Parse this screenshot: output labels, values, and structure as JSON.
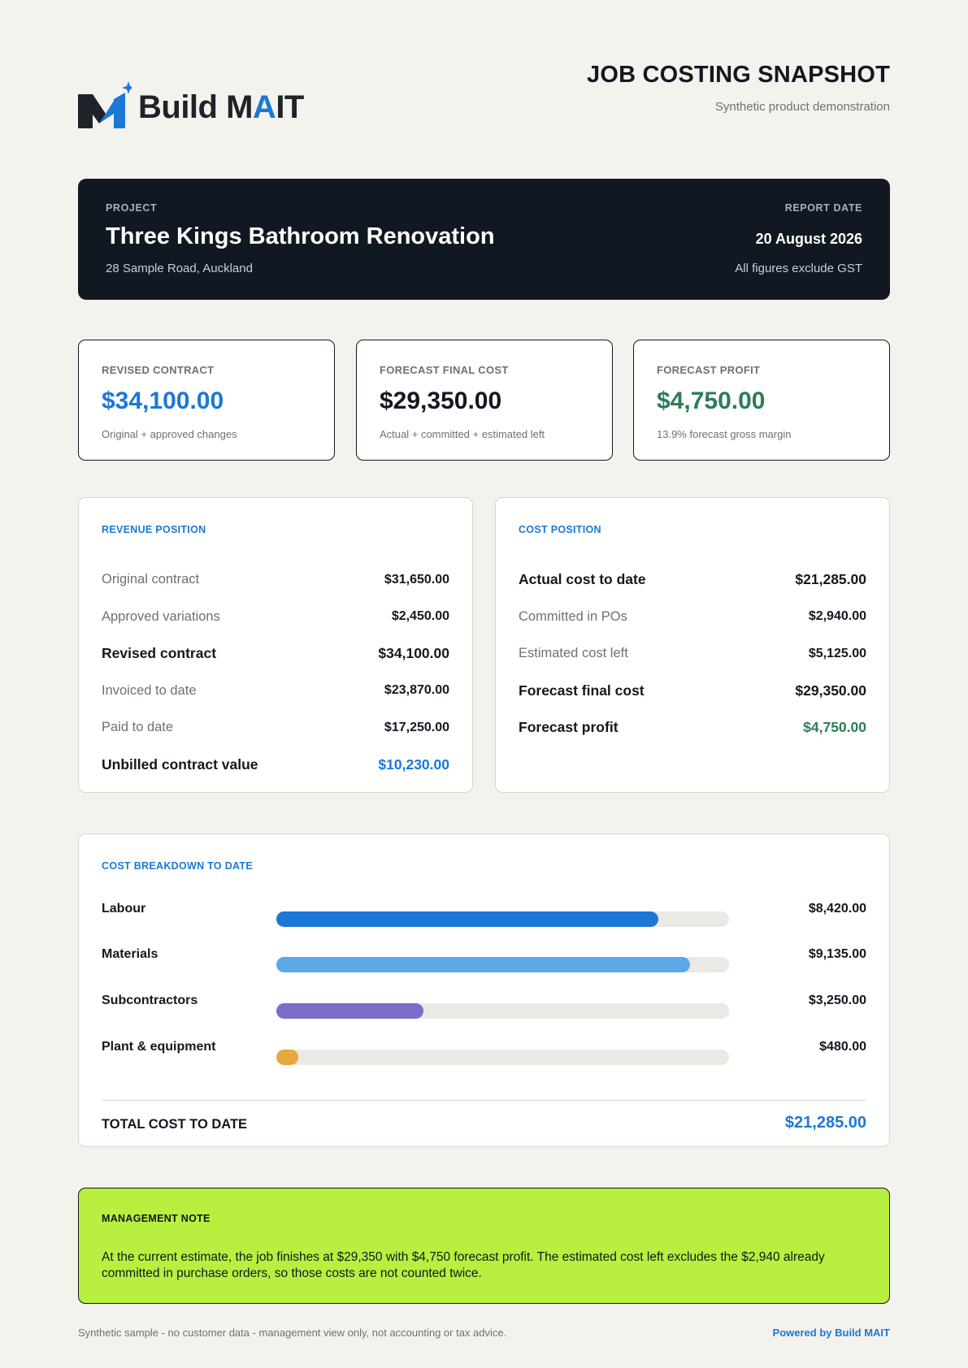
{
  "brand": {
    "name_part1": "Build M",
    "name_accent": "A",
    "name_part2": "IT",
    "colors": {
      "primary": "#1b78d6",
      "dark": "#121821",
      "positive": "#2d7d57",
      "note_bg": "#b9ef3e"
    }
  },
  "header": {
    "title": "JOB COSTING SNAPSHOT",
    "subtitle": "Synthetic product demonstration"
  },
  "project": {
    "label": "PROJECT",
    "name": "Three Kings Bathroom Renovation",
    "address": "28 Sample Road, Auckland",
    "report_date_label": "REPORT DATE",
    "report_date": "20 August 2026",
    "gst_note": "All figures exclude GST"
  },
  "kpis": [
    {
      "label": "REVISED CONTRACT",
      "value": "$34,100.00",
      "sub": "Original + approved changes",
      "color": "#1b78d6"
    },
    {
      "label": "FORECAST FINAL COST",
      "value": "$29,350.00",
      "sub": "Actual + committed + estimated left",
      "color": "#121821"
    },
    {
      "label": "FORECAST PROFIT",
      "value": "$4,750.00",
      "sub": "13.9% forecast gross margin",
      "color": "#2d7d57"
    }
  ],
  "revenue": {
    "title": "REVENUE POSITION",
    "rows": [
      {
        "label": "Original contract",
        "value": "$31,650.00"
      },
      {
        "label": "Approved variations",
        "value": "$2,450.00"
      },
      {
        "label": "Revised contract",
        "value": "$34,100.00"
      },
      {
        "label": "Invoiced to date",
        "value": "$23,870.00"
      },
      {
        "label": "Paid to date",
        "value": "$17,250.00"
      },
      {
        "label": "Unbilled contract value",
        "value": "$10,230.00"
      }
    ]
  },
  "cost": {
    "title": "COST POSITION",
    "rows": [
      {
        "label": "Actual cost to date",
        "value": "$21,285.00"
      },
      {
        "label": "Committed in POs",
        "value": "$2,940.00"
      },
      {
        "label": "Estimated cost left",
        "value": "$5,125.00"
      },
      {
        "label": "Forecast final cost",
        "value": "$29,350.00"
      },
      {
        "label": "Forecast profit",
        "value": "$4,750.00"
      }
    ]
  },
  "breakdown": {
    "title": "COST BREAKDOWN TO DATE",
    "rows": [
      {
        "label": "Labour",
        "value": "$8,420.00",
        "fraction": 0.843,
        "color": "#1b78d6"
      },
      {
        "label": "Materials",
        "value": "$9,135.00",
        "fraction": 0.914,
        "color": "#5ca9e8"
      },
      {
        "label": "Subcontractors",
        "value": "$3,250.00",
        "fraction": 0.325,
        "color": "#7c6bc8"
      },
      {
        "label": "Plant & equipment",
        "value": "$480.00",
        "fraction": 0.048,
        "color": "#e6a93a"
      }
    ],
    "total_label": "TOTAL COST TO DATE",
    "total_value": "$21,285.00"
  },
  "note": {
    "title": "MANAGEMENT NOTE",
    "text": "At the current estimate, the job finishes at $29,350 with $4,750 forecast profit. The estimated cost left excludes the $2,940 already committed in purchase orders, so those costs are not counted twice."
  },
  "footer": {
    "disclaimer": "Synthetic sample - no customer data - management view only, not accounting or tax advice.",
    "powered_by": "Powered by Build MAIT"
  }
}
